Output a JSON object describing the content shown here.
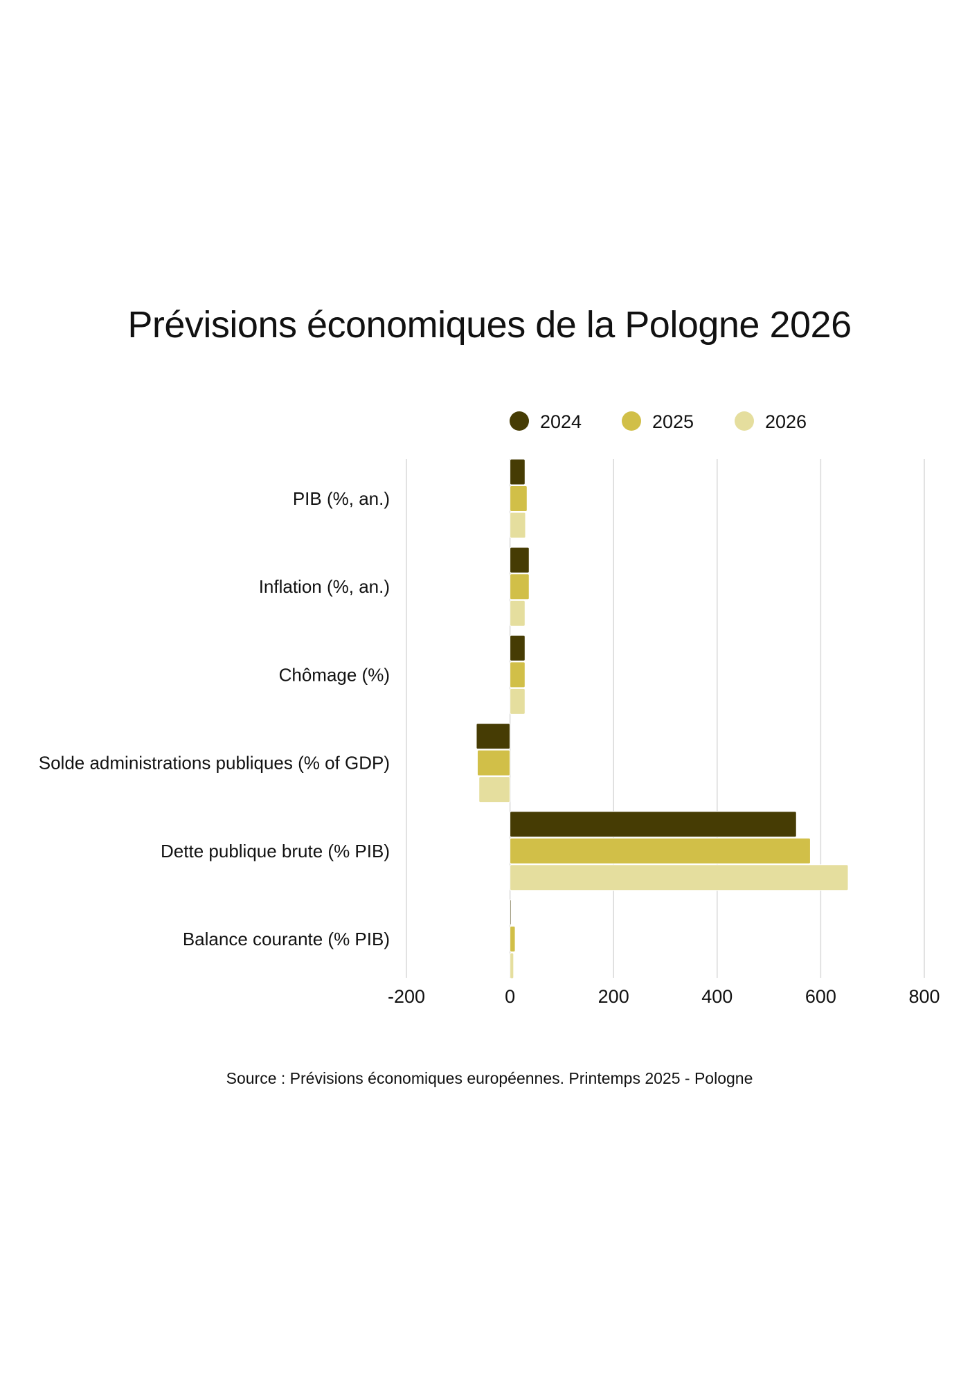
{
  "chart_data": {
    "type": "bar",
    "orientation": "horizontal",
    "title": "Prévisions économiques de la Pologne 2026",
    "categories": [
      "PIB (%, an.)",
      "Inflation (%, an.)",
      "Chômage (%)",
      "Solde administrations publiques (% of GDP)",
      "Dette publique brute (% PIB)",
      "Balance courante (% PIB)"
    ],
    "series": [
      {
        "name": "2024",
        "color": "#463c04",
        "values": [
          29,
          37,
          29,
          -65,
          553,
          1
        ]
      },
      {
        "name": "2025",
        "color": "#d1bf48",
        "values": [
          33,
          37,
          29,
          -63,
          580,
          10
        ]
      },
      {
        "name": "2026",
        "color": "#e5de9e",
        "values": [
          30,
          29,
          29,
          -60,
          653,
          7
        ]
      }
    ],
    "xlim": [
      -200,
      800
    ],
    "xticks": [
      "-200",
      "0",
      "200",
      "400",
      "600",
      "800"
    ],
    "grid": true,
    "legend_position": "top",
    "source": "Source : Prévisions économiques européennes. Printemps 2025 - Pologne"
  }
}
